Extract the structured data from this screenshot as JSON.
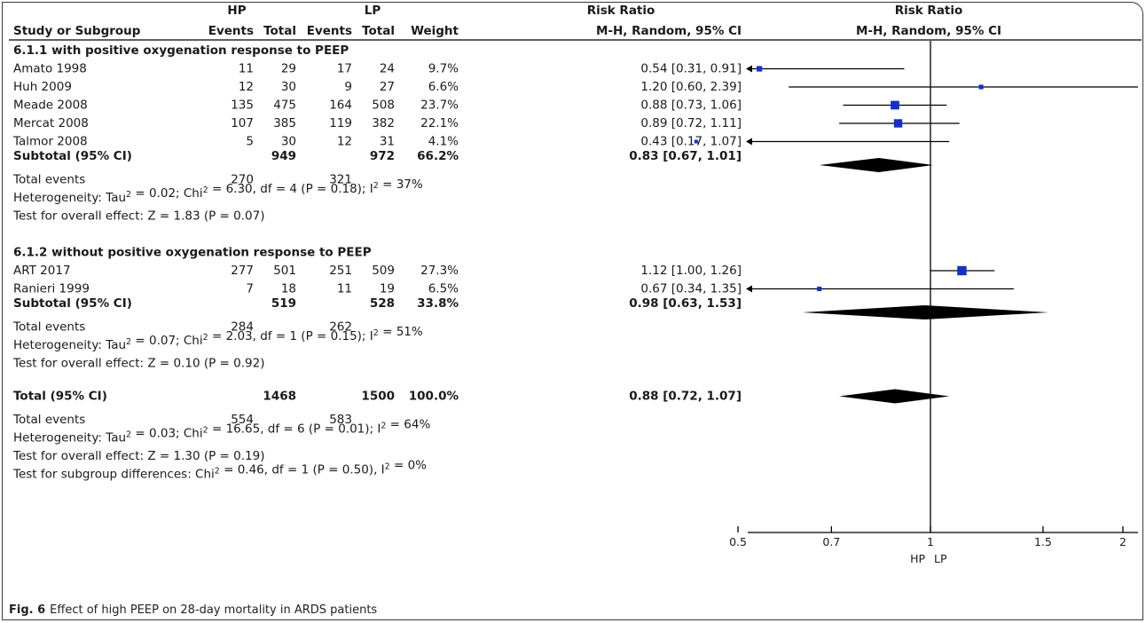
{
  "caption": {
    "label": "Fig. 6",
    "text": "Effect of high PEEP on 28-day mortality in ARDS patients"
  },
  "headers": {
    "group_hp": "HP",
    "group_lp": "LP",
    "rr_table": "Risk Ratio",
    "rr_plot": "Risk Ratio",
    "study": "Study or Subgroup",
    "events_hp": "Events",
    "total_hp": "Total",
    "events_lp": "Events",
    "total_lp": "Total",
    "weight": "Weight",
    "method": "M-H, Random, 95% CI",
    "method_plot": "M-H, Random, 95% CI"
  },
  "colors": {
    "marker": "#1530c8",
    "diamond": "#000000",
    "lines": "#000000"
  },
  "chart_data": {
    "type": "forest",
    "x_scale": "log",
    "x_ticks": [
      {
        "value": 0.5,
        "label": "0.5"
      },
      {
        "value": 0.7,
        "label": "0.7"
      },
      {
        "value": 1,
        "label": "1"
      },
      {
        "value": 1.5,
        "label": "1.5"
      },
      {
        "value": 2,
        "label": "2"
      }
    ],
    "x_range": [
      0.35,
      2.6
    ],
    "favours_left": "HP",
    "favours_right": "LP",
    "subgroups": [
      {
        "title": "6.1.1 with positive oxygenation response to PEEP",
        "studies": [
          {
            "name": "Amato 1998",
            "hp_events": "11",
            "hp_total": "29",
            "lp_events": "17",
            "lp_total": "24",
            "weight": "9.7%",
            "ci_text": "0.54 [0.31, 0.91]",
            "rr": 0.54,
            "lo": 0.31,
            "hi": 0.91
          },
          {
            "name": "Huh 2009",
            "hp_events": "12",
            "hp_total": "30",
            "lp_events": "9",
            "lp_total": "27",
            "weight": "6.6%",
            "ci_text": "1.20 [0.60, 2.39]",
            "rr": 1.2,
            "lo": 0.6,
            "hi": 2.39
          },
          {
            "name": "Meade 2008",
            "hp_events": "135",
            "hp_total": "475",
            "lp_events": "164",
            "lp_total": "508",
            "weight": "23.7%",
            "ci_text": "0.88 [0.73, 1.06]",
            "rr": 0.88,
            "lo": 0.73,
            "hi": 1.06
          },
          {
            "name": "Mercat 2008",
            "hp_events": "107",
            "hp_total": "385",
            "lp_events": "119",
            "lp_total": "382",
            "weight": "22.1%",
            "ci_text": "0.89 [0.72, 1.11]",
            "rr": 0.89,
            "lo": 0.72,
            "hi": 1.11
          },
          {
            "name": "Talmor 2008",
            "hp_events": "5",
            "hp_total": "30",
            "lp_events": "12",
            "lp_total": "31",
            "weight": "4.1%",
            "ci_text": "0.43 [0.17, 1.07]",
            "rr": 0.43,
            "lo": 0.17,
            "hi": 1.07
          }
        ],
        "subtotal": {
          "label": "Subtotal (95% CI)",
          "hp_total": "949",
          "lp_total": "972",
          "weight": "66.2%",
          "ci_text": "0.83 [0.67, 1.01]",
          "rr": 0.83,
          "lo": 0.67,
          "hi": 1.01
        },
        "total_events": {
          "label": "Total events",
          "hp": "270",
          "lp": "321"
        },
        "heterogeneity": {
          "prefix": "Heterogeneity: Tau",
          "tau2": " = 0.02; Chi",
          "chi2": " = 6.30, df = 4 (P = 0.18); I",
          "i2": " = 37%"
        },
        "overall": "Test for overall effect: Z = 1.83 (P = 0.07)"
      },
      {
        "title": "6.1.2 without positive oxygenation response to PEEP",
        "studies": [
          {
            "name": "ART 2017",
            "hp_events": "277",
            "hp_total": "501",
            "lp_events": "251",
            "lp_total": "509",
            "weight": "27.3%",
            "ci_text": "1.12 [1.00, 1.26]",
            "rr": 1.12,
            "lo": 1.0,
            "hi": 1.26
          },
          {
            "name": "Ranieri 1999",
            "hp_events": "7",
            "hp_total": "18",
            "lp_events": "11",
            "lp_total": "19",
            "weight": "6.5%",
            "ci_text": "0.67 [0.34, 1.35]",
            "rr": 0.67,
            "lo": 0.34,
            "hi": 1.35
          }
        ],
        "subtotal": {
          "label": "Subtotal (95% CI)",
          "hp_total": "519",
          "lp_total": "528",
          "weight": "33.8%",
          "ci_text": "0.98 [0.63, 1.53]",
          "rr": 0.98,
          "lo": 0.63,
          "hi": 1.53
        },
        "total_events": {
          "label": "Total events",
          "hp": "284",
          "lp": "262"
        },
        "heterogeneity": {
          "prefix": "Heterogeneity: Tau",
          "tau2": " = 0.07; Chi",
          "chi2": " = 2.03, df = 1 (P = 0.15); I",
          "i2": " = 51%"
        },
        "overall": "Test for overall effect: Z = 0.10 (P = 0.92)"
      }
    ],
    "total": {
      "label": "Total (95% CI)",
      "hp_total": "1468",
      "lp_total": "1500",
      "weight": "100.0%",
      "ci_text": "0.88 [0.72, 1.07]",
      "rr": 0.88,
      "lo": 0.72,
      "hi": 1.07,
      "total_events": {
        "label": "Total events",
        "hp": "554",
        "lp": "583"
      },
      "heterogeneity": {
        "prefix": "Heterogeneity: Tau",
        "tau2": " = 0.03; Chi",
        "chi2": " = 16.65, df = 6 (P = 0.01); I",
        "i2": " = 64%"
      },
      "overall": "Test for overall effect: Z = 1.30 (P = 0.19)",
      "subgroup_diff": {
        "prefix": "Test for subgroup differences: Chi",
        "chi2": " = 0.46, df = 1 (P = 0.50), I",
        "i2": " = 0%"
      }
    }
  }
}
